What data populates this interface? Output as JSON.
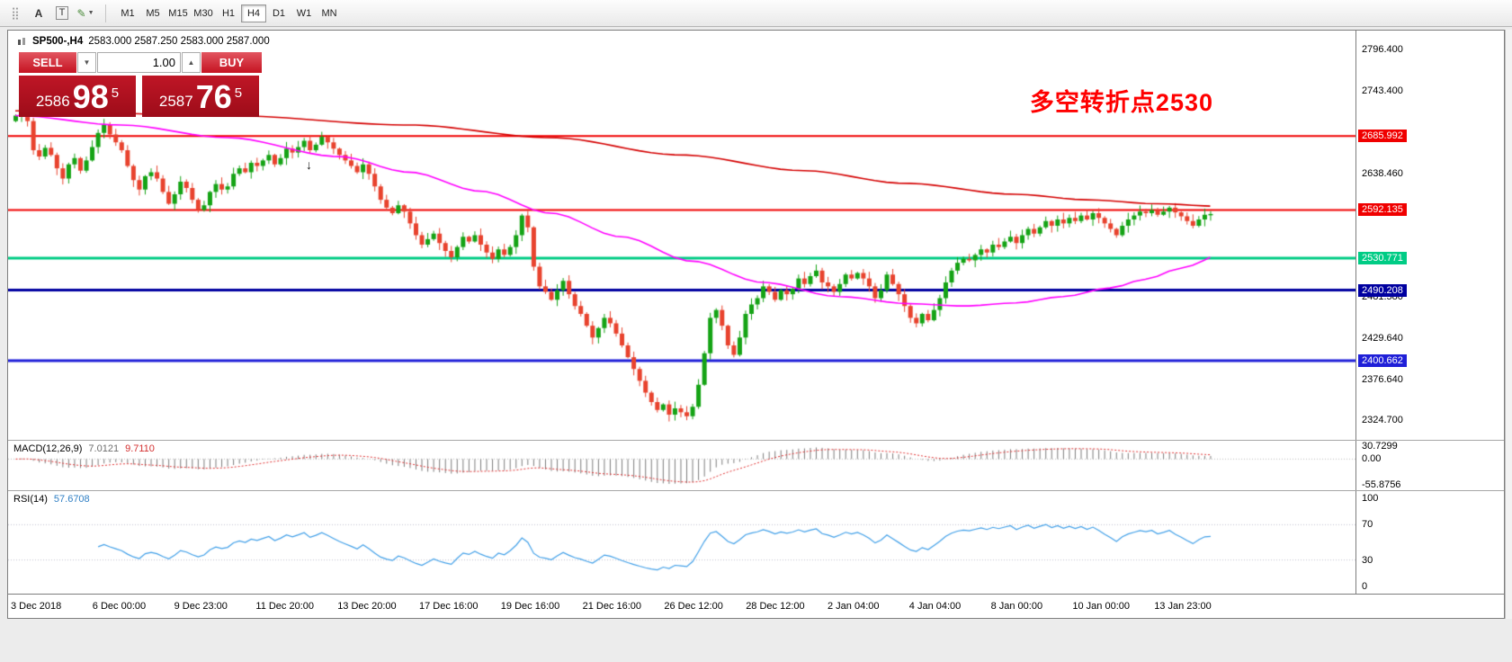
{
  "toolbar": {
    "text_tool": "A",
    "type_tool": "T",
    "timeframes": [
      "M1",
      "M5",
      "M15",
      "M30",
      "H1",
      "H4",
      "D1",
      "W1",
      "MN"
    ],
    "active_timeframe": "H4"
  },
  "icons": {
    "drag_handle": "⣿",
    "draw_tool": "✎",
    "caret_down": "▼",
    "caret_up": "▲",
    "toolbar_caret": "▼",
    "arrow_marker": "↓"
  },
  "header": {
    "symbol": "SP500-,H4",
    "ohlc": "2583.000 2587.250 2583.000 2587.000"
  },
  "trade_panel": {
    "sell_label": "SELL",
    "buy_label": "BUY",
    "volume": "1.00",
    "sell_stem": "2586",
    "sell_big": "98",
    "sell_sup": "5",
    "buy_stem": "2587",
    "buy_big": "76",
    "buy_sup": "5"
  },
  "annotation": {
    "text": "多空转折点2530",
    "color": "#ff0000"
  },
  "price_axis": {
    "ticks": [
      {
        "label": "2796.400",
        "price": 2796.4
      },
      {
        "label": "2743.400",
        "price": 2743.4
      },
      {
        "label": "2638.460",
        "price": 2638.46
      },
      {
        "label": "2481.580",
        "price": 2481.58
      },
      {
        "label": "2429.640",
        "price": 2429.64
      },
      {
        "label": "2376.640",
        "price": 2376.64
      },
      {
        "label": "2324.700",
        "price": 2324.7
      }
    ]
  },
  "hlines": [
    {
      "label": "2685.992",
      "price": 2685.992,
      "color": "#f00000",
      "width": 2
    },
    {
      "label": "2592.135",
      "price": 2592.135,
      "color": "#f00000",
      "width": 2
    },
    {
      "label": "2530.771",
      "price": 2530.771,
      "color": "#00cc85",
      "width": 3
    },
    {
      "label": "2490.208",
      "price": 2490.208,
      "color": "#0000a0",
      "width": 3
    },
    {
      "label": "2400.662",
      "price": 2400.662,
      "color": "#1f1fd8",
      "width": 3
    }
  ],
  "chart_data": {
    "type": "candlestick",
    "symbol": "SP500-",
    "timeframe": "H4",
    "price_range": [
      2300,
      2820
    ],
    "up_color": "#15a315",
    "down_color": "#e8432e",
    "first_open": 2705,
    "closes": [
      2712,
      2726,
      2705,
      2668,
      2660,
      2671,
      2662,
      2645,
      2632,
      2650,
      2658,
      2642,
      2655,
      2672,
      2690,
      2700,
      2688,
      2678,
      2668,
      2648,
      2630,
      2618,
      2635,
      2640,
      2632,
      2615,
      2600,
      2612,
      2628,
      2620,
      2605,
      2592,
      2598,
      2615,
      2625,
      2618,
      2622,
      2638,
      2645,
      2640,
      2652,
      2648,
      2655,
      2662,
      2650,
      2658,
      2670,
      2665,
      2672,
      2680,
      2668,
      2675,
      2685,
      2678,
      2670,
      2662,
      2655,
      2648,
      2640,
      2650,
      2638,
      2622,
      2605,
      2595,
      2588,
      2598,
      2590,
      2575,
      2560,
      2548,
      2555,
      2562,
      2550,
      2540,
      2532,
      2545,
      2558,
      2552,
      2560,
      2548,
      2538,
      2530,
      2542,
      2535,
      2545,
      2560,
      2585,
      2570,
      2520,
      2495,
      2488,
      2478,
      2490,
      2502,
      2485,
      2470,
      2460,
      2445,
      2430,
      2442,
      2455,
      2448,
      2435,
      2420,
      2405,
      2390,
      2375,
      2360,
      2348,
      2338,
      2345,
      2332,
      2340,
      2335,
      2330,
      2342,
      2370,
      2410,
      2455,
      2465,
      2445,
      2420,
      2408,
      2430,
      2460,
      2472,
      2480,
      2495,
      2488,
      2478,
      2490,
      2485,
      2492,
      2505,
      2498,
      2508,
      2515,
      2500,
      2495,
      2488,
      2498,
      2510,
      2505,
      2512,
      2505,
      2495,
      2480,
      2490,
      2510,
      2498,
      2485,
      2470,
      2455,
      2448,
      2460,
      2452,
      2465,
      2480,
      2500,
      2515,
      2525,
      2530,
      2528,
      2535,
      2542,
      2538,
      2548,
      2545,
      2552,
      2558,
      2550,
      2560,
      2568,
      2562,
      2570,
      2578,
      2572,
      2580,
      2575,
      2582,
      2578,
      2585,
      2580,
      2588,
      2582,
      2575,
      2568,
      2560,
      2572,
      2580,
      2585,
      2590,
      2588,
      2592,
      2586,
      2590,
      2595,
      2589,
      2584,
      2578,
      2572,
      2580,
      2586,
      2587
    ],
    "overlays": [
      {
        "name": "ma-slow",
        "color": "#d40000",
        "anchors": [
          [
            0,
            2718
          ],
          [
            36,
            2712
          ],
          [
            67,
            2700
          ],
          [
            91,
            2684
          ],
          [
            113,
            2662
          ],
          [
            134,
            2642
          ],
          [
            151,
            2626
          ],
          [
            170,
            2612
          ],
          [
            182,
            2605
          ],
          [
            194,
            2600
          ],
          [
            204,
            2597
          ]
        ]
      },
      {
        "name": "ma-fast",
        "color": "#ff00ff",
        "anchors": [
          [
            0,
            2712
          ],
          [
            18,
            2700
          ],
          [
            36,
            2684
          ],
          [
            55,
            2660
          ],
          [
            67,
            2640
          ],
          [
            79,
            2616
          ],
          [
            91,
            2588
          ],
          [
            103,
            2558
          ],
          [
            115,
            2527
          ],
          [
            127,
            2500
          ],
          [
            140,
            2482
          ],
          [
            152,
            2473
          ],
          [
            161,
            2470
          ],
          [
            170,
            2474
          ],
          [
            178,
            2482
          ],
          [
            186,
            2493
          ],
          [
            192,
            2504
          ],
          [
            198,
            2518
          ],
          [
            204,
            2532
          ]
        ]
      }
    ],
    "indicators": {
      "macd": {
        "label": "MACD(12,26,9)",
        "value_main": "7.0121",
        "value_signal": "9.7110",
        "axis_max": "30.7299",
        "axis_zero": "0.00",
        "axis_min": "-55.8756",
        "range": [
          -55.8756,
          30.7299
        ],
        "params": [
          12,
          26,
          9
        ]
      },
      "rsi": {
        "label": "RSI(14)",
        "value": "57.6708",
        "period": 14,
        "axis": [
          "100",
          "70",
          "30",
          "0"
        ],
        "gridlines": [
          70,
          30
        ]
      }
    },
    "x_labels": [
      "3 Dec 2018",
      "6 Dec 00:00",
      "9 Dec 23:00",
      "11 Dec 20:00",
      "13 Dec 20:00",
      "17 Dec 16:00",
      "19 Dec 16:00",
      "21 Dec 16:00",
      "26 Dec 12:00",
      "28 Dec 12:00",
      "2 Jan 04:00",
      "4 Jan 04:00",
      "8 Jan 00:00",
      "10 Jan 00:00",
      "13 Jan 23:00"
    ]
  }
}
